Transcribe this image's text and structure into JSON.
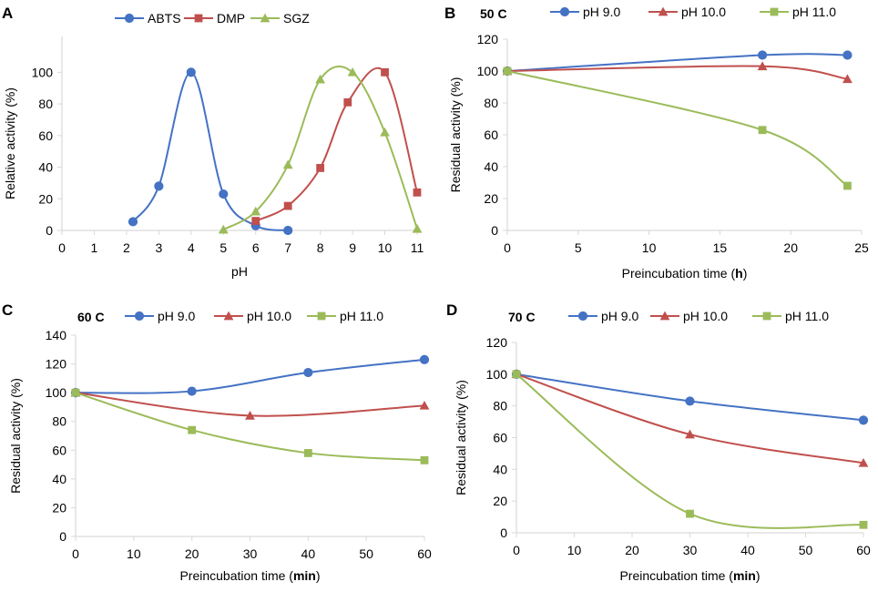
{
  "chart_data": [
    {
      "panel_label": "A",
      "type": "line",
      "title": "",
      "xlabel": "pH",
      "xlabel_bold": "",
      "ylabel": "Relative activity (%)",
      "xlim": [
        0,
        11
      ],
      "ylim": [
        0,
        110
      ],
      "xticks": [
        0,
        1,
        2,
        3,
        4,
        5,
        6,
        7,
        8,
        9,
        10,
        11
      ],
      "yticks": [
        0,
        20,
        40,
        60,
        80,
        100
      ],
      "legend": "top-center",
      "series": [
        {
          "name": "ABTS",
          "color": "#4472C4",
          "marker": "circle",
          "x": [
            2.2,
            3,
            4,
            5,
            6,
            7
          ],
          "y": [
            5.5,
            28,
            100,
            23,
            3,
            0
          ]
        },
        {
          "name": "DMP",
          "color": "#C0504D",
          "marker": "square",
          "x": [
            6,
            7,
            8,
            8.85,
            10,
            11
          ],
          "y": [
            6,
            15.5,
            39.5,
            81,
            100,
            24
          ]
        },
        {
          "name": "SGZ",
          "color": "#9BBB59",
          "marker": "triangle",
          "x": [
            5,
            6,
            7,
            8,
            9,
            10,
            11
          ],
          "y": [
            0.5,
            12,
            41.5,
            95.5,
            100,
            62,
            1
          ]
        }
      ]
    },
    {
      "panel_label": "B",
      "type": "line",
      "title": "50 C",
      "xlabel": "Preincubation time (",
      "xlabel_bold": "h",
      "xlabel_end": ")",
      "ylabel": "Residual activity (%)",
      "xlim": [
        0,
        25
      ],
      "ylim": [
        0,
        120
      ],
      "xticks": [
        0,
        5,
        10,
        15,
        20,
        25
      ],
      "yticks": [
        0,
        20,
        40,
        60,
        80,
        100,
        120
      ],
      "legend": "top",
      "series": [
        {
          "name": "pH 9.0",
          "color": "#4472C4",
          "marker": "circle",
          "x": [
            0,
            18,
            24
          ],
          "y": [
            100,
            110,
            110
          ]
        },
        {
          "name": "pH 10.0",
          "color": "#C0504D",
          "marker": "triangle",
          "x": [
            0,
            18,
            24
          ],
          "y": [
            100,
            103,
            95
          ]
        },
        {
          "name": "pH 11.0",
          "color": "#9BBB59",
          "marker": "square",
          "x": [
            0,
            18,
            24
          ],
          "y": [
            100,
            63,
            28
          ]
        }
      ]
    },
    {
      "panel_label": "C",
      "type": "line",
      "title": "60 C",
      "xlabel": "Preincubation time (",
      "xlabel_bold": "min",
      "xlabel_end": ")",
      "ylabel": "Residual activity (%)",
      "xlim": [
        0,
        60
      ],
      "ylim": [
        0,
        140
      ],
      "xticks": [
        0,
        10,
        20,
        30,
        40,
        50,
        60
      ],
      "yticks": [
        0,
        20,
        40,
        60,
        80,
        100,
        120,
        140
      ],
      "legend": "top",
      "series": [
        {
          "name": "pH 9.0",
          "color": "#4472C4",
          "marker": "circle",
          "x": [
            0,
            20,
            40,
            60
          ],
          "y": [
            100,
            101,
            114,
            123
          ]
        },
        {
          "name": "pH 10.0",
          "color": "#C0504D",
          "marker": "triangle",
          "x": [
            0,
            30,
            60
          ],
          "y": [
            100,
            84,
            91
          ]
        },
        {
          "name": "pH 11.0",
          "color": "#9BBB59",
          "marker": "square",
          "x": [
            0,
            20,
            40,
            60
          ],
          "y": [
            100,
            74,
            58,
            53
          ]
        }
      ]
    },
    {
      "panel_label": "D",
      "type": "line",
      "title": "70 C",
      "xlabel": "Preincubation time (",
      "xlabel_bold": "min",
      "xlabel_end": ")",
      "ylabel": "Residual activity (%)",
      "xlim": [
        0,
        60
      ],
      "ylim": [
        0,
        120
      ],
      "xticks": [
        0,
        10,
        20,
        30,
        40,
        50,
        60
      ],
      "yticks": [
        0,
        20,
        40,
        60,
        80,
        100,
        120
      ],
      "legend": "top",
      "series": [
        {
          "name": "pH 9.0",
          "color": "#4472C4",
          "marker": "circle",
          "x": [
            0,
            30,
            60
          ],
          "y": [
            100,
            83,
            71
          ]
        },
        {
          "name": "pH 10.0",
          "color": "#C0504D",
          "marker": "triangle",
          "x": [
            0,
            30,
            60
          ],
          "y": [
            100,
            62,
            44
          ]
        },
        {
          "name": "pH 11.0",
          "color": "#9BBB59",
          "marker": "square",
          "x": [
            0,
            30,
            60
          ],
          "y": [
            100,
            12,
            5
          ]
        }
      ]
    }
  ],
  "style": {
    "axis_color": "#D9D9D9",
    "text_color": "#000000"
  }
}
